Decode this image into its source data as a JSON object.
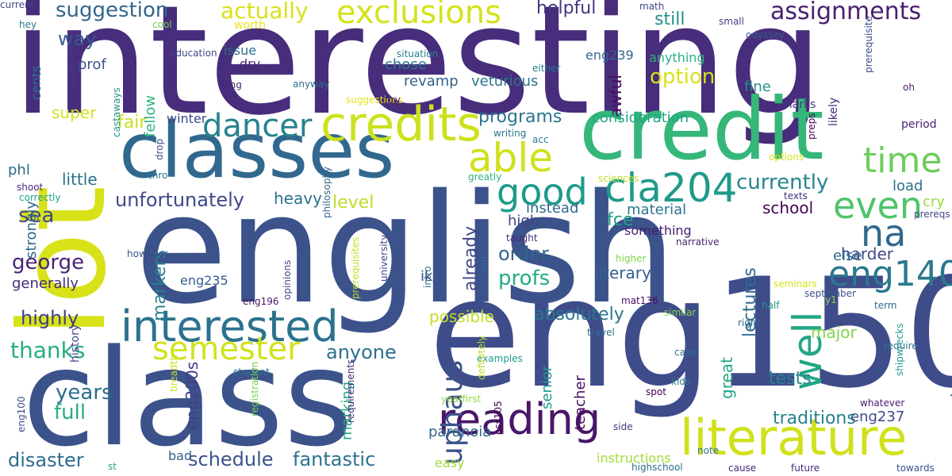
{
  "words": [
    {
      "text": "interesting",
      "color": "#472d7b",
      "rotated": false
    },
    {
      "text": "english",
      "color": "#3b528b",
      "rotated": false
    },
    {
      "text": "class",
      "color": "#3b528b",
      "rotated": false
    },
    {
      "text": "eng150",
      "color": "#3e4c8a",
      "rotated": false
    },
    {
      "text": "lot",
      "color": "#d8e219",
      "rotated": true
    },
    {
      "text": "credit",
      "color": "#35b779",
      "rotated": false
    },
    {
      "text": "classes",
      "color": "#31688e",
      "rotated": false
    },
    {
      "text": "credits",
      "color": "#cde11d",
      "rotated": false
    },
    {
      "text": "literature",
      "color": "#d0e11c",
      "rotated": false
    },
    {
      "text": "interested",
      "color": "#2c728e",
      "rotated": false
    },
    {
      "text": "reading",
      "color": "#481769",
      "rotated": false
    },
    {
      "text": "eng140",
      "color": "#2a788e",
      "rotated": false
    },
    {
      "text": "cla204",
      "color": "#1f9a8a",
      "rotated": false
    },
    {
      "text": "exclusions",
      "color": "#d5e21a",
      "rotated": false
    },
    {
      "text": "semester",
      "color": "#d2e21b",
      "rotated": false
    },
    {
      "text": "dancer",
      "color": "#26828e",
      "rotated": false
    },
    {
      "text": "able",
      "color": "#d0e11c",
      "rotated": false
    },
    {
      "text": "even",
      "color": "#50c46a",
      "rotated": false
    },
    {
      "text": "na",
      "color": "#31688e",
      "rotated": false
    },
    {
      "text": "time",
      "color": "#6ccd5a",
      "rotated": false
    },
    {
      "text": "well",
      "color": "#22a785",
      "rotated": true
    },
    {
      "text": "good",
      "color": "#1e9b8a",
      "rotated": false
    },
    {
      "text": "uphaus",
      "color": "#3b528b",
      "rotated": true
    },
    {
      "text": "assignments",
      "color": "#481f70",
      "rotated": false
    },
    {
      "text": "suggestion",
      "color": "#31688e",
      "rotated": false
    },
    {
      "text": "actually",
      "color": "#d8e219",
      "rotated": false
    },
    {
      "text": "thanks",
      "color": "#27ad81",
      "rotated": false
    },
    {
      "text": "george",
      "color": "#482475",
      "rotated": false
    },
    {
      "text": "unfortunately",
      "color": "#3e4989",
      "rotated": false
    },
    {
      "text": "currently",
      "color": "#25858e",
      "rotated": false
    },
    {
      "text": "highly",
      "color": "#433e85",
      "rotated": false
    },
    {
      "text": "full",
      "color": "#29af7f",
      "rotated": false
    },
    {
      "text": "years",
      "color": "#2e6e8e",
      "rotated": false
    },
    {
      "text": "sea",
      "color": "#3e4989",
      "rotated": false
    },
    {
      "text": "way",
      "color": "#375b8d",
      "rotated": false
    },
    {
      "text": "anyone",
      "color": "#2d708e",
      "rotated": false
    },
    {
      "text": "disaster",
      "color": "#2e6e8e",
      "rotated": false
    },
    {
      "text": "schedule",
      "color": "#3b528b",
      "rotated": false
    },
    {
      "text": "fantastic",
      "color": "#2c728e",
      "rotated": false
    },
    {
      "text": "experience",
      "color": "#306a8e",
      "rotated": true
    },
    {
      "text": "lectures",
      "color": "#2f6c8e",
      "rotated": true
    },
    {
      "text": "absolutely",
      "color": "#2a778e",
      "rotated": false
    },
    {
      "text": "possible",
      "color": "#c2df23",
      "rotated": false
    },
    {
      "text": "profs",
      "color": "#25ab82",
      "rotated": false
    },
    {
      "text": "order",
      "color": "#33638d",
      "rotated": false
    },
    {
      "text": "option",
      "color": "#d8e219",
      "rotated": false
    },
    {
      "text": "programs",
      "color": "#2c738e",
      "rotated": false
    },
    {
      "text": "helpful",
      "color": "#463480",
      "rotated": false
    },
    {
      "text": "still",
      "color": "#21918c",
      "rotated": false
    },
    {
      "text": "tests",
      "color": "#25848e",
      "rotated": false
    },
    {
      "text": "great",
      "color": "#21a685",
      "rotated": true
    },
    {
      "text": "major",
      "color": "#84d44b",
      "rotated": false
    },
    {
      "text": "traditions",
      "color": "#27808e",
      "rotated": false
    },
    {
      "text": "eng237",
      "color": "#3e4989",
      "rotated": false
    },
    {
      "text": "markers",
      "color": "#27808e",
      "rotated": true
    },
    {
      "text": "already",
      "color": "#3e4989",
      "rotated": true
    },
    {
      "text": "level",
      "color": "#bddf26",
      "rotated": false
    },
    {
      "text": "heavy",
      "color": "#2c728e",
      "rotated": false
    },
    {
      "text": "fce",
      "color": "#1f9e89",
      "rotated": false
    },
    {
      "text": "literary",
      "color": "#34608d",
      "rotated": false
    },
    {
      "text": "material",
      "color": "#2a768e",
      "rotated": false
    },
    {
      "text": "school",
      "color": "#440154",
      "rotated": false
    },
    {
      "text": "load",
      "color": "#2d708e",
      "rotated": false
    },
    {
      "text": "harder",
      "color": "#3e4a89",
      "rotated": false
    },
    {
      "text": "instead",
      "color": "#306a8e",
      "rotated": false
    },
    {
      "text": "generally",
      "color": "#472c7a",
      "rotated": false
    },
    {
      "text": "fair",
      "color": "#c8e020",
      "rotated": false
    },
    {
      "text": "super",
      "color": "#d2e21b",
      "rotated": false
    },
    {
      "text": "little",
      "color": "#2d718e",
      "rotated": false
    },
    {
      "text": "cry",
      "color": "#9bd93c",
      "rotated": false
    },
    {
      "text": "else",
      "color": "#2f6c8e",
      "rotated": false
    },
    {
      "text": "high",
      "color": "#3f4788",
      "rotated": false
    },
    {
      "text": "phl",
      "color": "#2e6d8e",
      "rotated": false
    },
    {
      "text": "eng200s",
      "color": "#424086",
      "rotated": true
    },
    {
      "text": "marking",
      "color": "#25ac82",
      "rotated": true
    },
    {
      "text": "paranoia",
      "color": "#31688e",
      "rotated": false
    },
    {
      "text": "teacher",
      "color": "#460b5e",
      "rotated": true
    },
    {
      "text": "senior",
      "color": "#1f988b",
      "rotated": true
    },
    {
      "text": "eng235",
      "color": "#365c8d",
      "rotated": false
    },
    {
      "text": "ik",
      "color": "#3c508b",
      "rotated": false
    },
    {
      "text": "chose",
      "color": "#2a768e",
      "rotated": false
    },
    {
      "text": "revamp",
      "color": "#34618d",
      "rotated": false
    },
    {
      "text": "veturious",
      "color": "#2a768e",
      "rotated": false
    },
    {
      "text": "awful",
      "color": "#460b5e",
      "rotated": true
    },
    {
      "text": "eng239",
      "color": "#31688e",
      "rotated": false
    },
    {
      "text": "anything",
      "color": "#2ab07f",
      "rotated": false
    },
    {
      "text": "fine",
      "color": "#21918c",
      "rotated": false
    },
    {
      "text": "consideration",
      "color": "#21a585",
      "rotated": false
    },
    {
      "text": "prof",
      "color": "#3b528b",
      "rotated": false
    },
    {
      "text": "issue",
      "color": "#2e6e8e",
      "rotated": false
    },
    {
      "text": "dry",
      "color": "#482878",
      "rotated": false
    },
    {
      "text": "fellow",
      "color": "#2fb47c",
      "rotated": true
    },
    {
      "text": "cents",
      "color": "#2c728e",
      "rotated": true
    },
    {
      "text": "strongly",
      "color": "#31688e",
      "rotated": true
    },
    {
      "text": "history",
      "color": "#3f4788",
      "rotated": true
    },
    {
      "text": "winter",
      "color": "#3e4989",
      "rotated": false
    },
    {
      "text": "bad",
      "color": "#375a8c",
      "rotated": false
    },
    {
      "text": "easy",
      "color": "#a0da39",
      "rotated": false
    },
    {
      "text": "instructions",
      "color": "#a5db36",
      "rotated": false
    },
    {
      "text": "something",
      "color": "#481a6c",
      "rotated": false
    },
    {
      "text": "hey",
      "color": "#2a768e",
      "rotated": false
    },
    {
      "text": "education",
      "color": "#3f4889",
      "rotated": false
    },
    {
      "text": "cool",
      "color": "#75d054",
      "rotated": false
    },
    {
      "text": "worth",
      "color": "#e7e419",
      "rotated": false
    },
    {
      "text": "situation",
      "color": "#25848e",
      "rotated": false
    },
    {
      "text": "either",
      "color": "#2a778e",
      "rotated": false
    },
    {
      "text": "math",
      "color": "#3f4788",
      "rotated": false
    },
    {
      "text": "small",
      "color": "#433e85",
      "rotated": false
    },
    {
      "text": "odyssey",
      "color": "#375b8d",
      "rotated": false
    },
    {
      "text": "period",
      "color": "#482173",
      "rotated": false
    },
    {
      "text": "prerequisite",
      "color": "#3e4c8a",
      "rotated": true
    },
    {
      "text": "oh",
      "color": "#481c6e",
      "rotated": false
    },
    {
      "text": "marks",
      "color": "#46327e",
      "rotated": false
    },
    {
      "text": "likely",
      "color": "#482979",
      "rotated": true
    },
    {
      "text": "completely",
      "color": "#453882",
      "rotated": true
    },
    {
      "text": "long",
      "color": "#482677",
      "rotated": false
    },
    {
      "text": "anyway",
      "color": "#2f6c8e",
      "rotated": false
    },
    {
      "text": "suggestions",
      "color": "#e5e419",
      "rotated": false
    },
    {
      "text": "try",
      "color": "#481b6d",
      "rotated": false
    },
    {
      "text": "correctly",
      "color": "#1fa287",
      "rotated": false
    },
    {
      "text": "castaways",
      "color": "#21918c",
      "rotated": true
    },
    {
      "text": "writing",
      "color": "#2a778e",
      "rotated": false
    },
    {
      "text": "acc",
      "color": "#27808e",
      "rotated": false
    },
    {
      "text": "options",
      "color": "#d5e21a",
      "rotated": false
    },
    {
      "text": "preps",
      "color": "#440154",
      "rotated": true
    },
    {
      "text": "drop",
      "color": "#3e4c8a",
      "rotated": true
    },
    {
      "text": "thro",
      "color": "#2a788e",
      "rotated": false
    },
    {
      "text": "shoot",
      "color": "#472c7a",
      "rotated": false
    },
    {
      "text": "greatly",
      "color": "#2fb47c",
      "rotated": false
    },
    {
      "text": "sciences",
      "color": "#bddf26",
      "rotated": false
    },
    {
      "text": "texts",
      "color": "#463480",
      "rotated": false
    },
    {
      "text": "however",
      "color": "#3b528b",
      "rotated": false
    },
    {
      "text": "uni",
      "color": "#2e6e8e",
      "rotated": true
    },
    {
      "text": "philosophy",
      "color": "#33638d",
      "rotated": true
    },
    {
      "text": "taught",
      "color": "#472c7a",
      "rotated": false
    },
    {
      "text": "narrative",
      "color": "#482475",
      "rotated": false
    },
    {
      "text": "prereqs",
      "color": "#3e4989",
      "rotated": false
    },
    {
      "text": "higher",
      "color": "#84d44b",
      "rotated": false
    },
    {
      "text": "september",
      "color": "#3b528b",
      "rotated": false
    },
    {
      "text": "opinions",
      "color": "#3e4989",
      "rotated": true
    },
    {
      "text": "university",
      "color": "#3e4989",
      "rotated": true
    },
    {
      "text": "eng196",
      "color": "#481769",
      "rotated": false
    },
    {
      "text": "prerequisites",
      "color": "#bddf26",
      "rotated": true
    },
    {
      "text": "intro",
      "color": "#2d708e",
      "rotated": true
    },
    {
      "text": "seminars",
      "color": "#d8e219",
      "rotated": false
    },
    {
      "text": "y1",
      "color": "#90d743",
      "rotated": false
    },
    {
      "text": "mat136",
      "color": "#460b5e",
      "rotated": false
    },
    {
      "text": "half",
      "color": "#1f978b",
      "rotated": false
    },
    {
      "text": "term",
      "color": "#2f6c8e",
      "rotated": false
    },
    {
      "text": "similar",
      "color": "#84d44b",
      "rotated": false
    },
    {
      "text": "travel",
      "color": "#2e6e8e",
      "rotated": false
    },
    {
      "text": "right",
      "color": "#31688e",
      "rotated": false
    },
    {
      "text": "require",
      "color": "#2d718e",
      "rotated": false
    },
    {
      "text": "case",
      "color": "#2c728e",
      "rotated": false
    },
    {
      "text": "examples",
      "color": "#1f988b",
      "rotated": false
    },
    {
      "text": "kids",
      "color": "#2a788e",
      "rotated": false
    },
    {
      "text": "spot",
      "color": "#440154",
      "rotated": false
    },
    {
      "text": "student",
      "color": "#2c728e",
      "rotated": false
    },
    {
      "text": "whatever",
      "color": "#481a6c",
      "rotated": false
    },
    {
      "text": "shipwrecks",
      "color": "#1f988b",
      "rotated": true
    },
    {
      "text": "eng100",
      "color": "#3e4989",
      "rotated": true
    },
    {
      "text": "registration",
      "color": "#7ad151",
      "rotated": true
    },
    {
      "text": "breadth",
      "color": "#c8e020",
      "rotated": true
    },
    {
      "text": "yearfirst",
      "color": "#95d840",
      "rotated": false
    },
    {
      "text": "definitely",
      "color": "#bddf26",
      "rotated": true
    },
    {
      "text": "side",
      "color": "#46337f",
      "rotated": false
    },
    {
      "text": "ess105",
      "color": "#440154",
      "rotated": true
    },
    {
      "text": "requirements",
      "color": "#482475",
      "rotated": true
    },
    {
      "text": "note",
      "color": "#2d718e",
      "rotated": false
    },
    {
      "text": "st",
      "color": "#21a685",
      "rotated": false
    },
    {
      "text": "highschool",
      "color": "#2e6e8e",
      "rotated": false
    },
    {
      "text": "cause",
      "color": "#482878",
      "rotated": false
    },
    {
      "text": "future",
      "color": "#472d7b",
      "rotated": false
    },
    {
      "text": "towards",
      "color": "#3b528b",
      "rotated": false
    },
    {
      "text": "current",
      "color": "#3e4989",
      "rotated": false
    }
  ]
}
